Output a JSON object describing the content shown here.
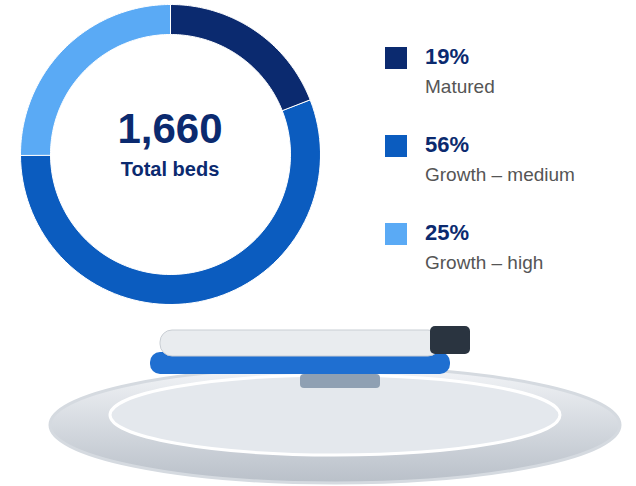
{
  "chart_data": {
    "type": "donut",
    "total": {
      "value": 1660,
      "label": "1,660"
    },
    "total_label": "Total beds",
    "categories": [
      "Matured",
      "Growth – medium",
      "Growth – high"
    ],
    "values": [
      19,
      56,
      25
    ],
    "value_labels": [
      "19%",
      "56%",
      "25%"
    ],
    "colors": [
      "#0b2a6f",
      "#0b5cbf",
      "#5aaaf5"
    ],
    "legend": "right"
  }
}
